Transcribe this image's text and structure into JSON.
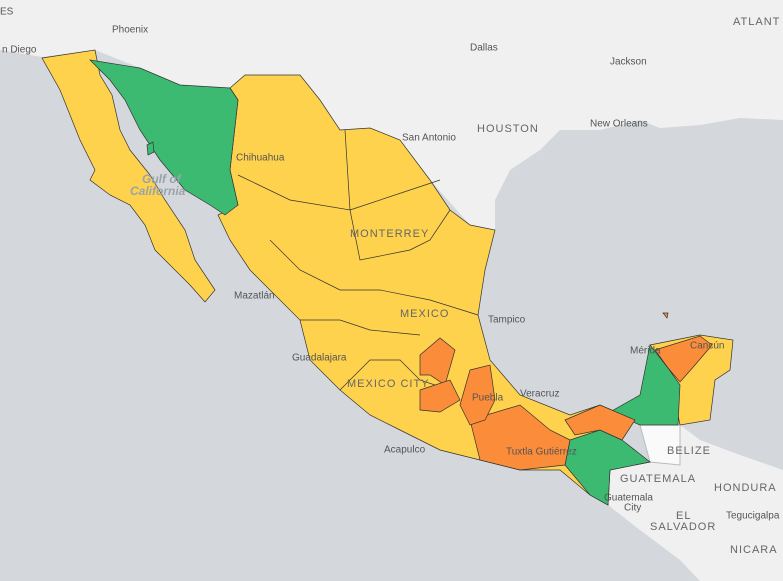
{
  "labels": [
    "ES",
    "Phoenix",
    "ATLANT",
    "n Diego",
    "Dallas",
    "Jackson",
    "HOUSTON",
    "San Antonio",
    "New Orleans",
    "Gulf of",
    "California",
    "Chihuahua",
    "MONTERREY",
    "Mazatlán",
    "Tampico",
    "MEXICO",
    "Guadalajara",
    "MEXICO CITY",
    "Puebla",
    "Veracruz",
    "Mérida",
    "Cancún",
    "Acapulco",
    "Tuxtla Gutiérrez",
    "BELIZE",
    "GUATEMALA",
    "HONDURA",
    "Guatemala",
    "City",
    "EL",
    "SALVADOR",
    "Tegucigalpa",
    "NICARA"
  ]
}
